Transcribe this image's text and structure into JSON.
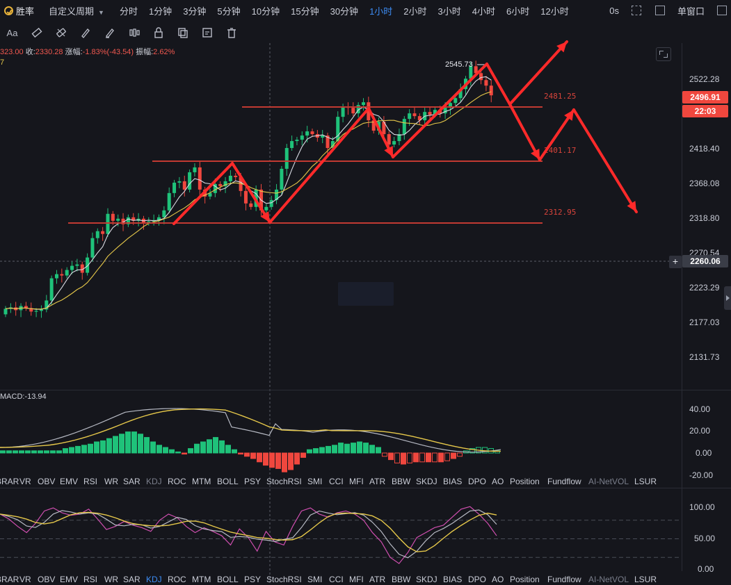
{
  "toolbar": {
    "brand": "胜率",
    "custom_period": "自定义周期",
    "periods": [
      "分时",
      "1分钟",
      "3分钟",
      "5分钟",
      "10分钟",
      "15分钟",
      "30分钟",
      "1小时",
      "2小时",
      "3小时",
      "4小时",
      "6小时",
      "12小时"
    ],
    "active_period": "1小时",
    "zero_s": "0s",
    "window_mode": "单窗口"
  },
  "ohlc_info": {
    "open_tail": "323.00",
    "close_label": "收:",
    "close": "2330.28",
    "change_label": "涨幅:",
    "change": "-1.83%(-43.54)",
    "amp_label": "振幅:",
    "amp": "2.62%",
    "second_line": "7"
  },
  "price_axis": {
    "labels": [
      "2522.28",
      "2418.40",
      "2368.08",
      "2318.80",
      "2270.54",
      "2223.29",
      "2177.03",
      "2131.73"
    ],
    "current_price": "2496.91",
    "countdown": "22:03",
    "crosshair_price": "2260.06",
    "crosshair_symbol": "+",
    "colors": {
      "current": "#f0473e",
      "crosshair": "#3a3d47"
    }
  },
  "annotations": {
    "high_label": "2545.73",
    "levels": [
      "2481.25",
      "2401.17",
      "2312.95"
    ]
  },
  "macd": {
    "label": "MACD:-13.94",
    "axis": [
      "40.00",
      "20.00",
      "0.00",
      "-20.00"
    ]
  },
  "indicator_tabs_1": [
    "BRAR",
    "VR",
    "OBV",
    "EMV",
    "RSI",
    "WR",
    "SAR",
    "KDJ",
    "ROC",
    "MTM",
    "BOLL",
    "PSY",
    "StochRSI",
    "SMI",
    "CCI",
    "MFI",
    "ATR",
    "BBW",
    "SKDJ",
    "BIAS",
    "DPO",
    "AO",
    "Position",
    "Fundflow",
    "AI-NetVOL",
    "LSUR"
  ],
  "indicator_tabs_2": [
    "BRAR",
    "VR",
    "OBV",
    "EMV",
    "RSI",
    "WR",
    "SAR",
    "KDJ",
    "ROC",
    "MTM",
    "BOLL",
    "PSY",
    "StochRSI",
    "SMI",
    "CCI",
    "MFI",
    "ATR",
    "BBW",
    "SKDJ",
    "BIAS",
    "DPO",
    "AO",
    "Position",
    "Fundflow",
    "AI-NetVOL",
    "LSUR"
  ],
  "kdj_axis": [
    "100.00",
    "50.00",
    "0.00"
  ],
  "colors": {
    "up": "#1fc27a",
    "down": "#f0473e",
    "active_tab": "#3d8df5",
    "ma_short": "#d9dbe3",
    "ma_long": "#e6c84a",
    "kdj_j": "#d04fb0"
  }
}
